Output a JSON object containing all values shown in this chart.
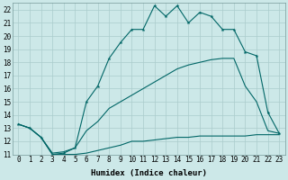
{
  "xlabel": "Humidex (Indice chaleur)",
  "xlim": [
    -0.5,
    23.5
  ],
  "ylim": [
    11,
    22.5
  ],
  "background_color": "#cce8e8",
  "grid_color": "#aacccc",
  "line_color": "#006666",
  "series_max": [
    13.3,
    13.0,
    12.3,
    11.0,
    11.1,
    11.5,
    15.0,
    16.2,
    18.3,
    19.5,
    20.5,
    20.5,
    22.3,
    21.5,
    22.3,
    21.0,
    21.8,
    21.5,
    20.5,
    20.5,
    18.8,
    18.5,
    14.2,
    12.6
  ],
  "series_mean": [
    13.3,
    13.0,
    12.3,
    11.1,
    11.2,
    11.5,
    12.8,
    13.5,
    14.5,
    15.0,
    15.5,
    16.0,
    16.5,
    17.0,
    17.5,
    17.8,
    18.0,
    18.2,
    18.3,
    18.3,
    16.2,
    15.0,
    12.8,
    12.6
  ],
  "series_min": [
    13.3,
    13.0,
    12.3,
    11.0,
    11.0,
    11.0,
    11.1,
    11.3,
    11.5,
    11.7,
    12.0,
    12.0,
    12.1,
    12.2,
    12.3,
    12.3,
    12.4,
    12.4,
    12.4,
    12.4,
    12.4,
    12.5,
    12.5,
    12.5
  ],
  "xtick_vals": [
    0,
    1,
    2,
    3,
    4,
    5,
    6,
    7,
    8,
    9,
    10,
    11,
    12,
    13,
    14,
    15,
    16,
    17,
    18,
    19,
    20,
    21,
    22,
    23
  ],
  "xtick_labels": [
    "0",
    "1",
    "2",
    "3",
    "4",
    "5",
    "6",
    "7",
    "8",
    "9",
    "10",
    "11",
    "12",
    "13",
    "14",
    "15",
    "16",
    "17",
    "18",
    "19",
    "20",
    "21",
    "22",
    "23"
  ],
  "ytick_vals": [
    11,
    12,
    13,
    14,
    15,
    16,
    17,
    18,
    19,
    20,
    21,
    22
  ],
  "ytick_labels": [
    "11",
    "12",
    "13",
    "14",
    "15",
    "16",
    "17",
    "18",
    "19",
    "20",
    "21",
    "22"
  ],
  "tick_fontsize": 5.5,
  "xlabel_fontsize": 6.5
}
